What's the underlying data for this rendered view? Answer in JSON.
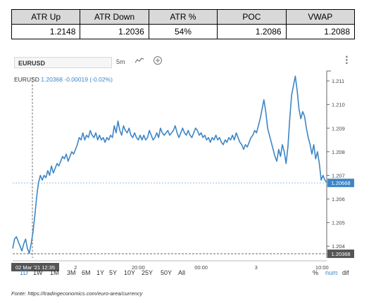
{
  "stats": {
    "headers": [
      "ATR Up",
      "ATR Down",
      "ATR %",
      "POC",
      "VWAP"
    ],
    "values": [
      "1.2148",
      "1.2036",
      "54%",
      "1.2086",
      "1.2088"
    ]
  },
  "toolbar": {
    "symbol": "EURUSD",
    "interval": "5m"
  },
  "quote": {
    "symbol": "EURUSD",
    "price": "1.20368",
    "change": "-0.00019 (-0.02%)"
  },
  "colors": {
    "line": "#3d86c6",
    "tag": "#3d86c6",
    "tag_dark": "#555555",
    "grid_tick": "#999999"
  },
  "chart_data": {
    "type": "line",
    "ylim": [
      1.2035,
      1.2113
    ],
    "y_ticks": [
      "1.211",
      "1.210",
      "1.209",
      "1.208",
      "1.207",
      "1.206",
      "1.205",
      "1.204"
    ],
    "x_tick_labels": [
      "2",
      "20:00",
      "00:00",
      "3",
      "10:00"
    ],
    "x_tick_pos": [
      0.2,
      0.4,
      0.6,
      0.775,
      0.985
    ],
    "series": [
      {
        "values": [
          1.2039,
          1.2043,
          1.2044,
          1.2042,
          1.204,
          1.2038,
          1.2041,
          1.2043,
          1.2039,
          1.2037,
          1.2041,
          1.2046,
          1.2053,
          1.2061,
          1.2067,
          1.207,
          1.2068,
          1.207,
          1.2069,
          1.2072,
          1.207,
          1.2074,
          1.2071,
          1.2073,
          1.2075,
          1.2074,
          1.2076,
          1.2078,
          1.2077,
          1.2079,
          1.2076,
          1.2078,
          1.208,
          1.2079,
          1.2081,
          1.2083,
          1.2086,
          1.2085,
          1.2088,
          1.2085,
          1.2087,
          1.2086,
          1.2089,
          1.2087,
          1.2086,
          1.2088,
          1.2085,
          1.2087,
          1.2085,
          1.2086,
          1.2084,
          1.2086,
          1.2085,
          1.2087,
          1.2086,
          1.2091,
          1.2088,
          1.2093,
          1.2089,
          1.2087,
          1.2091,
          1.2089,
          1.2088,
          1.209,
          1.2087,
          1.2086,
          1.2088,
          1.2086,
          1.2085,
          1.2087,
          1.2085,
          1.2087,
          1.2085,
          1.2086,
          1.2089,
          1.2087,
          1.2085,
          1.2086,
          1.2088,
          1.2086,
          1.209,
          1.2088,
          1.2087,
          1.2088,
          1.2089,
          1.2087,
          1.2088,
          1.2089,
          1.2091,
          1.2088,
          1.2086,
          1.2088,
          1.209,
          1.2088,
          1.2087,
          1.2089,
          1.2087,
          1.2086,
          1.2088,
          1.209,
          1.2089,
          1.2087,
          1.2088,
          1.2086,
          1.2087,
          1.2085,
          1.2086,
          1.2084,
          1.2086,
          1.2085,
          1.2087,
          1.2085,
          1.2086,
          1.2084,
          1.2083,
          1.2085,
          1.2084,
          1.2086,
          1.2085,
          1.2087,
          1.2085,
          1.2088,
          1.2086,
          1.2084,
          1.2083,
          1.2081,
          1.2083,
          1.2082,
          1.2084,
          1.2086,
          1.2087,
          1.2089,
          1.2088,
          1.2091,
          1.2094,
          1.2098,
          1.2102,
          1.2097,
          1.209,
          1.2087,
          1.2084,
          1.2081,
          1.2078,
          1.2076,
          1.2081,
          1.2078,
          1.2083,
          1.208,
          1.2075,
          1.2082,
          1.2094,
          1.2104,
          1.2108,
          1.2112,
          1.2106,
          1.2098,
          1.2094,
          1.2097,
          1.2095,
          1.209,
          1.2086,
          1.2083,
          1.2079,
          1.2083,
          1.2077,
          1.208,
          1.2075,
          1.2068,
          1.207,
          1.2068,
          1.2067
        ]
      }
    ],
    "last_price_label": "1.20668",
    "last_price_value": 1.20668,
    "crosshair_price_label": "1.20368",
    "crosshair_price_value": 1.20368,
    "crosshair_time_label": "02 Mar '21 12:35"
  },
  "ranges": [
    "1D",
    "1W",
    "1M",
    "3M",
    "6M",
    "1Y",
    "5Y",
    "10Y",
    "25Y",
    "50Y",
    "All"
  ],
  "active_range": "1D",
  "scale_modes": [
    "%",
    "num",
    "dif"
  ],
  "footnote": "Fonte: https://tradingeconomics.com/euro-area/currency"
}
